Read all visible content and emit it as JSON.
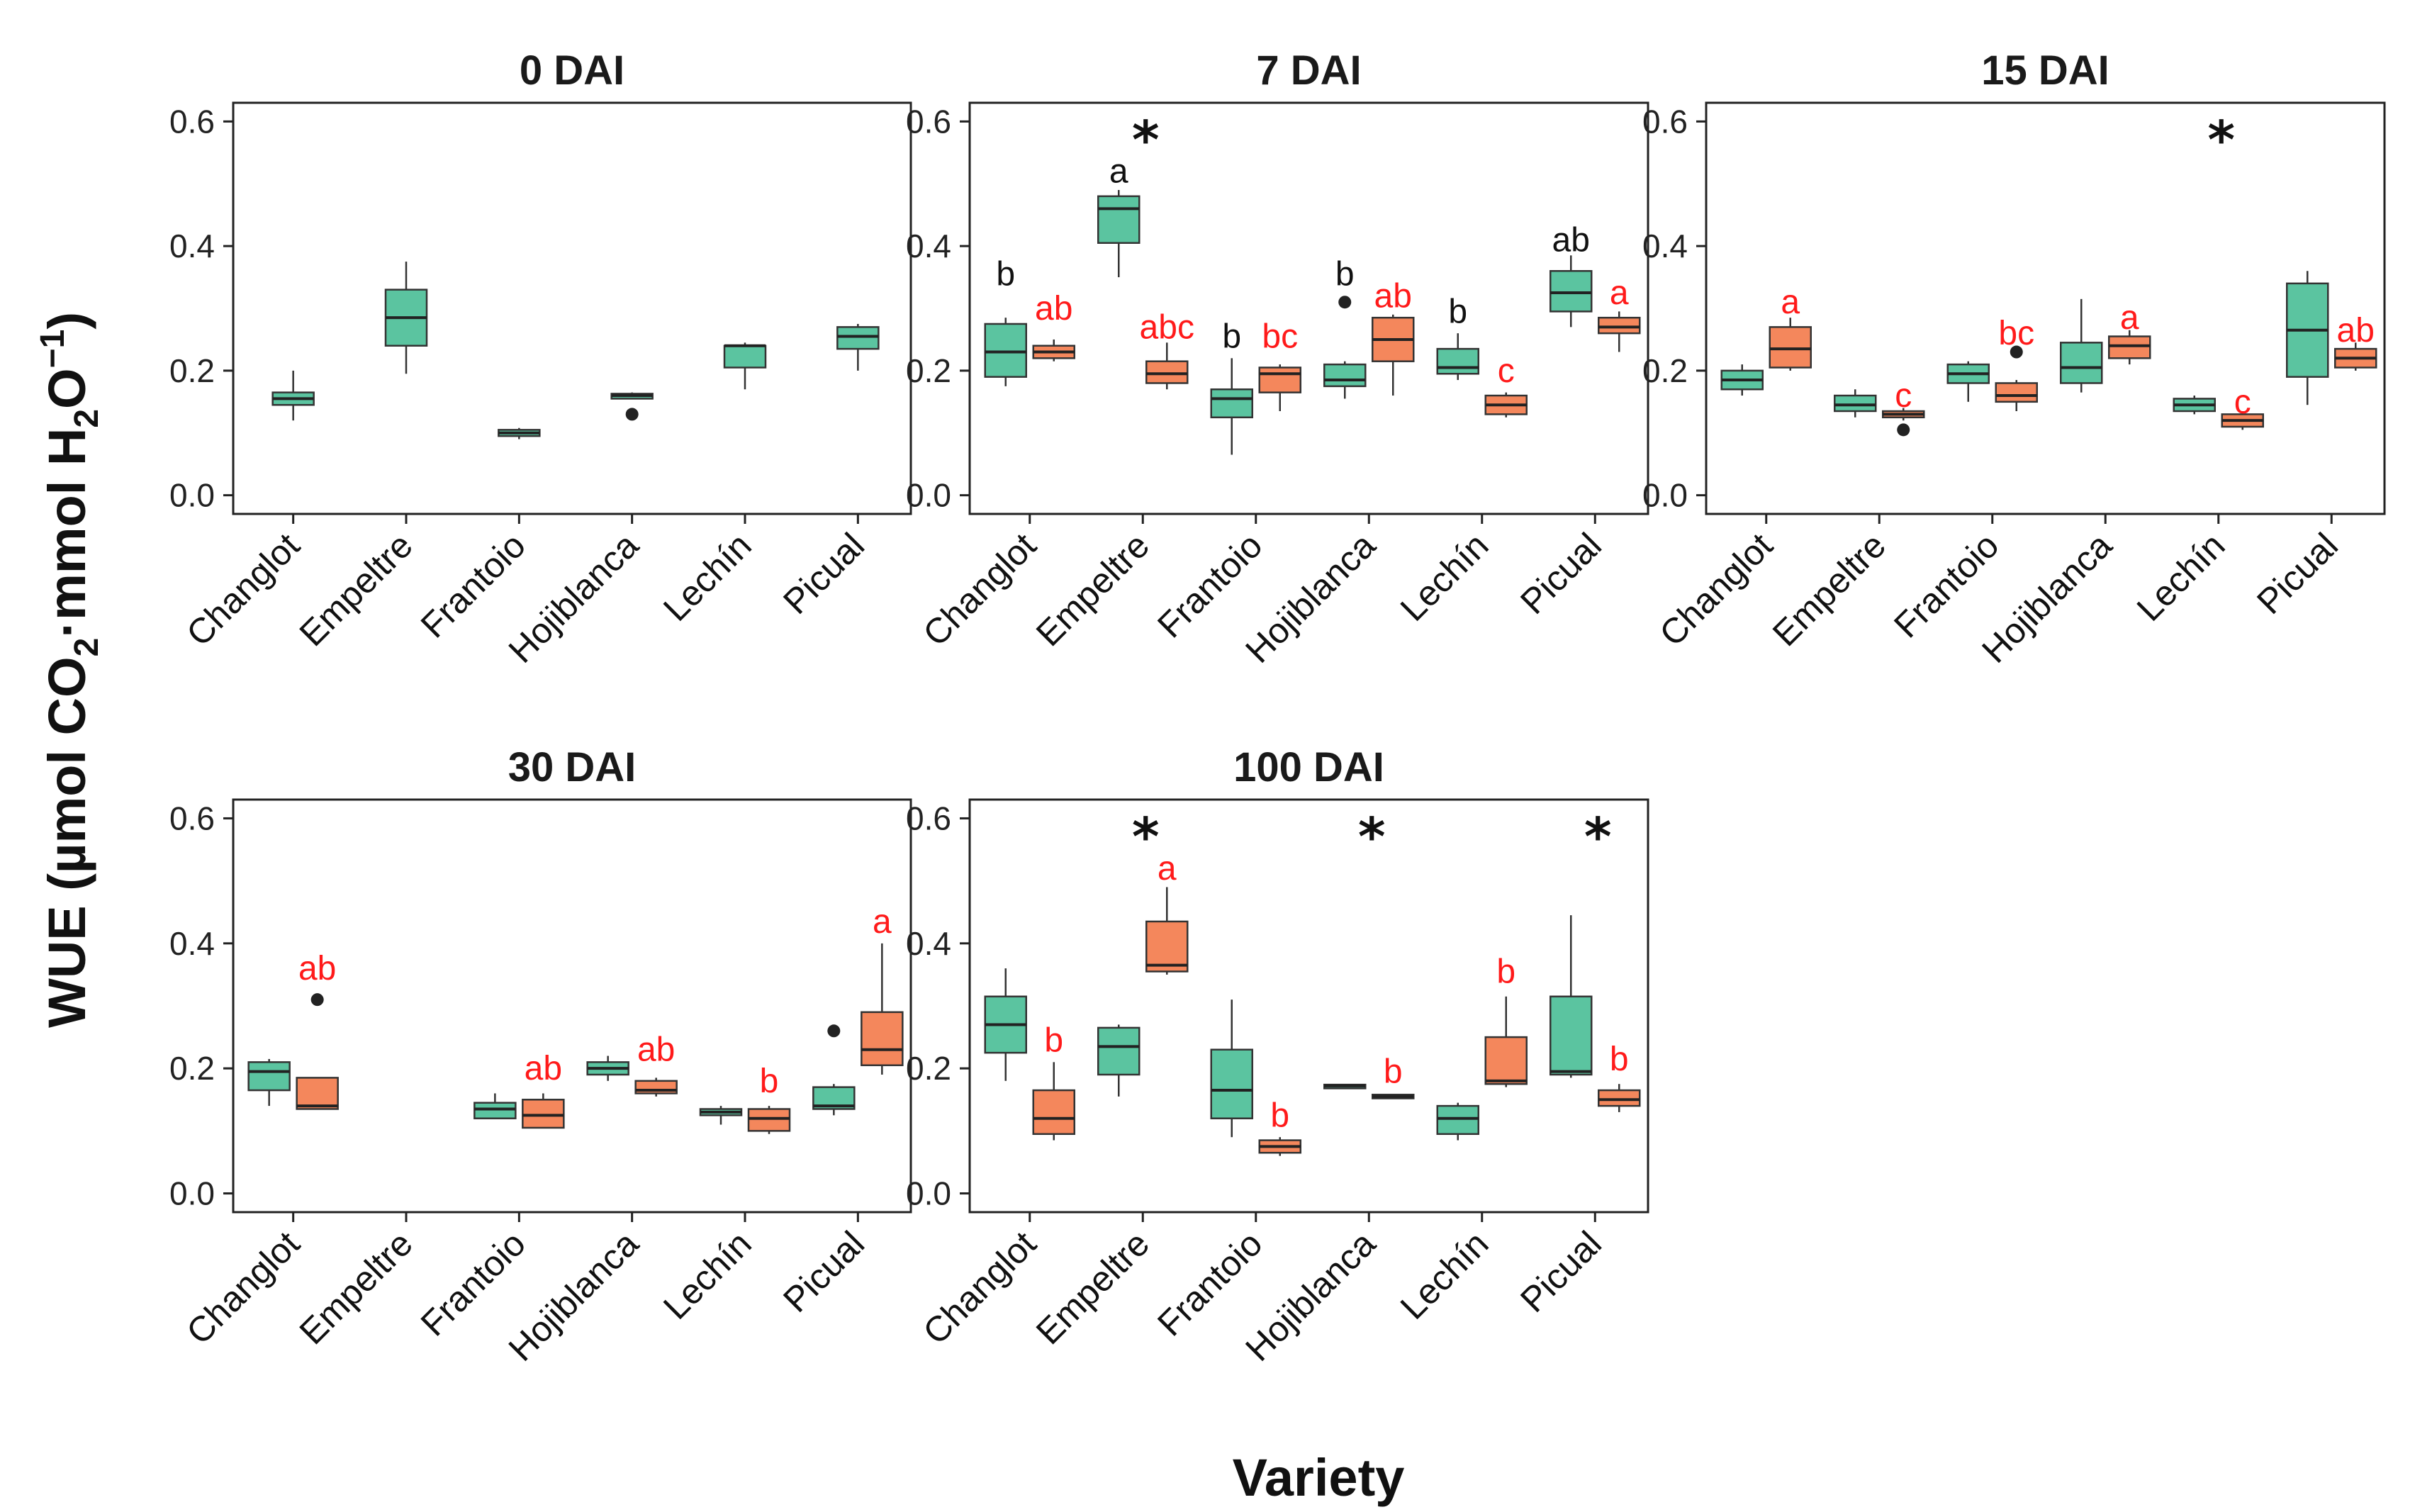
{
  "colors": {
    "control": "#5BC4A0",
    "treated": "#F4875C",
    "control_label": "#111111",
    "treated_label": "#FF1A1A",
    "frame": "#222222"
  },
  "figure": {
    "ylabel_main": "WUE (µmol CO",
    "ylabel_sub2": "2",
    "ylabel_mid": "·mmol H",
    "ylabel_sub2b": "2",
    "ylabel_o": "O",
    "ylabel_sup": "−1",
    "ylabel_end": ")",
    "xlabel": "Variety"
  },
  "chart_data": {
    "type": "box",
    "categories": [
      "Changlot",
      "Empeltre",
      "Frantoio",
      "Hojiblanca",
      "Lechín",
      "Picual"
    ],
    "yticks": [
      "0.0",
      "0.2",
      "0.4",
      "0.6"
    ],
    "ylim": [
      -0.03,
      0.63
    ],
    "series": [
      "control",
      "treated"
    ],
    "panels": [
      {
        "title": "0 DAI",
        "boxes": [
          {
            "cat": 0,
            "s": "control",
            "min": 0.12,
            "q1": 0.145,
            "med": 0.155,
            "q3": 0.165,
            "max": 0.2,
            "outliers": []
          },
          {
            "cat": 1,
            "s": "control",
            "min": 0.195,
            "q1": 0.24,
            "med": 0.285,
            "q3": 0.33,
            "max": 0.375,
            "outliers": []
          },
          {
            "cat": 2,
            "s": "control",
            "min": 0.09,
            "q1": 0.095,
            "med": 0.1,
            "q3": 0.105,
            "max": 0.108,
            "outliers": []
          },
          {
            "cat": 3,
            "s": "control",
            "min": 0.155,
            "q1": 0.155,
            "med": 0.16,
            "q3": 0.163,
            "max": 0.165,
            "outliers": [
              0.13
            ]
          },
          {
            "cat": 4,
            "s": "control",
            "min": 0.17,
            "q1": 0.205,
            "med": 0.24,
            "q3": 0.24,
            "max": 0.245,
            "outliers": []
          },
          {
            "cat": 5,
            "s": "control",
            "min": 0.2,
            "q1": 0.235,
            "med": 0.255,
            "q3": 0.27,
            "max": 0.275,
            "outliers": []
          }
        ],
        "labels": [],
        "stars": []
      },
      {
        "title": "7 DAI",
        "boxes": [
          {
            "cat": 0,
            "s": "control",
            "min": 0.175,
            "q1": 0.19,
            "med": 0.23,
            "q3": 0.275,
            "max": 0.285,
            "outliers": []
          },
          {
            "cat": 0,
            "s": "treated",
            "min": 0.215,
            "q1": 0.22,
            "med": 0.23,
            "q3": 0.24,
            "max": 0.25,
            "outliers": []
          },
          {
            "cat": 1,
            "s": "control",
            "min": 0.35,
            "q1": 0.405,
            "med": 0.46,
            "q3": 0.48,
            "max": 0.49,
            "outliers": []
          },
          {
            "cat": 1,
            "s": "treated",
            "min": 0.17,
            "q1": 0.18,
            "med": 0.195,
            "q3": 0.215,
            "max": 0.245,
            "outliers": []
          },
          {
            "cat": 2,
            "s": "control",
            "min": 0.065,
            "q1": 0.125,
            "med": 0.155,
            "q3": 0.17,
            "max": 0.22,
            "outliers": []
          },
          {
            "cat": 2,
            "s": "treated",
            "min": 0.135,
            "q1": 0.165,
            "med": 0.195,
            "q3": 0.205,
            "max": 0.21,
            "outliers": []
          },
          {
            "cat": 3,
            "s": "control",
            "min": 0.155,
            "q1": 0.175,
            "med": 0.185,
            "q3": 0.21,
            "max": 0.215,
            "outliers": [
              0.31
            ]
          },
          {
            "cat": 3,
            "s": "treated",
            "min": 0.16,
            "q1": 0.215,
            "med": 0.25,
            "q3": 0.285,
            "max": 0.29,
            "outliers": []
          },
          {
            "cat": 4,
            "s": "control",
            "min": 0.185,
            "q1": 0.195,
            "med": 0.205,
            "q3": 0.235,
            "max": 0.26,
            "outliers": []
          },
          {
            "cat": 4,
            "s": "treated",
            "min": 0.125,
            "q1": 0.13,
            "med": 0.145,
            "q3": 0.16,
            "max": 0.165,
            "outliers": []
          },
          {
            "cat": 5,
            "s": "control",
            "min": 0.27,
            "q1": 0.295,
            "med": 0.325,
            "q3": 0.36,
            "max": 0.385,
            "outliers": []
          },
          {
            "cat": 5,
            "s": "treated",
            "min": 0.23,
            "q1": 0.26,
            "med": 0.27,
            "q3": 0.285,
            "max": 0.295,
            "outliers": []
          }
        ],
        "labels": [
          {
            "cat": 0,
            "s": "control",
            "text": "b",
            "y": 0.355
          },
          {
            "cat": 0,
            "s": "treated",
            "text": "ab",
            "y": 0.3
          },
          {
            "cat": 1,
            "s": "control",
            "text": "a",
            "y": 0.52
          },
          {
            "cat": 1,
            "s": "treated",
            "text": "abc",
            "y": 0.27
          },
          {
            "cat": 2,
            "s": "control",
            "text": "b",
            "y": 0.255
          },
          {
            "cat": 2,
            "s": "treated",
            "text": "bc",
            "y": 0.255
          },
          {
            "cat": 3,
            "s": "control",
            "text": "b",
            "y": 0.355
          },
          {
            "cat": 3,
            "s": "treated",
            "text": "ab",
            "y": 0.32
          },
          {
            "cat": 4,
            "s": "control",
            "text": "b",
            "y": 0.295
          },
          {
            "cat": 4,
            "s": "treated",
            "text": "c",
            "y": 0.2
          },
          {
            "cat": 5,
            "s": "control",
            "text": "ab",
            "y": 0.41
          },
          {
            "cat": 5,
            "s": "treated",
            "text": "a",
            "y": 0.325
          }
        ],
        "stars": [
          1
        ]
      },
      {
        "title": "15 DAI",
        "boxes": [
          {
            "cat": 0,
            "s": "control",
            "min": 0.16,
            "q1": 0.17,
            "med": 0.185,
            "q3": 0.2,
            "max": 0.21,
            "outliers": []
          },
          {
            "cat": 0,
            "s": "treated",
            "min": 0.2,
            "q1": 0.205,
            "med": 0.235,
            "q3": 0.27,
            "max": 0.285,
            "outliers": []
          },
          {
            "cat": 1,
            "s": "control",
            "min": 0.125,
            "q1": 0.135,
            "med": 0.145,
            "q3": 0.16,
            "max": 0.17,
            "outliers": []
          },
          {
            "cat": 1,
            "s": "treated",
            "min": 0.12,
            "q1": 0.125,
            "med": 0.13,
            "q3": 0.135,
            "max": 0.14,
            "outliers": [
              0.105
            ]
          },
          {
            "cat": 2,
            "s": "control",
            "min": 0.15,
            "q1": 0.18,
            "med": 0.195,
            "q3": 0.21,
            "max": 0.215,
            "outliers": []
          },
          {
            "cat": 2,
            "s": "treated",
            "min": 0.135,
            "q1": 0.15,
            "med": 0.16,
            "q3": 0.18,
            "max": 0.185,
            "outliers": [
              0.23
            ]
          },
          {
            "cat": 3,
            "s": "control",
            "min": 0.165,
            "q1": 0.18,
            "med": 0.205,
            "q3": 0.245,
            "max": 0.315,
            "outliers": []
          },
          {
            "cat": 3,
            "s": "treated",
            "min": 0.21,
            "q1": 0.22,
            "med": 0.24,
            "q3": 0.255,
            "max": 0.265,
            "outliers": []
          },
          {
            "cat": 4,
            "s": "control",
            "min": 0.13,
            "q1": 0.135,
            "med": 0.145,
            "q3": 0.155,
            "max": 0.16,
            "outliers": []
          },
          {
            "cat": 4,
            "s": "treated",
            "min": 0.105,
            "q1": 0.11,
            "med": 0.12,
            "q3": 0.13,
            "max": 0.135,
            "outliers": []
          },
          {
            "cat": 5,
            "s": "control",
            "min": 0.145,
            "q1": 0.19,
            "med": 0.265,
            "q3": 0.34,
            "max": 0.36,
            "outliers": []
          },
          {
            "cat": 5,
            "s": "treated",
            "min": 0.2,
            "q1": 0.205,
            "med": 0.22,
            "q3": 0.235,
            "max": 0.245,
            "outliers": []
          }
        ],
        "labels": [
          {
            "cat": 0,
            "s": "treated",
            "text": "a",
            "y": 0.31
          },
          {
            "cat": 1,
            "s": "treated",
            "text": "c",
            "y": 0.16
          },
          {
            "cat": 2,
            "s": "treated",
            "text": "bc",
            "y": 0.26
          },
          {
            "cat": 3,
            "s": "treated",
            "text": "a",
            "y": 0.285
          },
          {
            "cat": 4,
            "s": "treated",
            "text": "c",
            "y": 0.15
          },
          {
            "cat": 5,
            "s": "treated",
            "text": "ab",
            "y": 0.265
          }
        ],
        "stars": [
          4
        ]
      },
      {
        "title": "30 DAI",
        "boxes": [
          {
            "cat": 0,
            "s": "control",
            "min": 0.14,
            "q1": 0.165,
            "med": 0.195,
            "q3": 0.21,
            "max": 0.215,
            "outliers": []
          },
          {
            "cat": 0,
            "s": "treated",
            "min": 0.135,
            "q1": 0.135,
            "med": 0.14,
            "q3": 0.185,
            "max": 0.185,
            "outliers": [
              0.31
            ]
          },
          {
            "cat": 2,
            "s": "control",
            "min": 0.12,
            "q1": 0.12,
            "med": 0.135,
            "q3": 0.145,
            "max": 0.16,
            "outliers": []
          },
          {
            "cat": 2,
            "s": "treated",
            "min": 0.105,
            "q1": 0.105,
            "med": 0.125,
            "q3": 0.15,
            "max": 0.16,
            "outliers": []
          },
          {
            "cat": 3,
            "s": "control",
            "min": 0.18,
            "q1": 0.19,
            "med": 0.2,
            "q3": 0.21,
            "max": 0.22,
            "outliers": []
          },
          {
            "cat": 3,
            "s": "treated",
            "min": 0.155,
            "q1": 0.16,
            "med": 0.165,
            "q3": 0.18,
            "max": 0.185,
            "outliers": []
          },
          {
            "cat": 4,
            "s": "control",
            "min": 0.11,
            "q1": 0.125,
            "med": 0.13,
            "q3": 0.135,
            "max": 0.14,
            "outliers": []
          },
          {
            "cat": 4,
            "s": "treated",
            "min": 0.095,
            "q1": 0.1,
            "med": 0.12,
            "q3": 0.135,
            "max": 0.14,
            "outliers": []
          },
          {
            "cat": 5,
            "s": "control",
            "min": 0.125,
            "q1": 0.135,
            "med": 0.14,
            "q3": 0.17,
            "max": 0.175,
            "outliers": [
              0.26
            ]
          },
          {
            "cat": 5,
            "s": "treated",
            "min": 0.19,
            "q1": 0.205,
            "med": 0.23,
            "q3": 0.29,
            "max": 0.4,
            "outliers": []
          }
        ],
        "labels": [
          {
            "cat": 0,
            "s": "treated",
            "text": "ab",
            "y": 0.36
          },
          {
            "cat": 2,
            "s": "treated",
            "text": "ab",
            "y": 0.2
          },
          {
            "cat": 3,
            "s": "treated",
            "text": "ab",
            "y": 0.23
          },
          {
            "cat": 4,
            "s": "treated",
            "text": "b",
            "y": 0.18
          },
          {
            "cat": 5,
            "s": "treated",
            "text": "a",
            "y": 0.435
          }
        ],
        "stars": []
      },
      {
        "title": "100 DAI",
        "boxes": [
          {
            "cat": 0,
            "s": "control",
            "min": 0.18,
            "q1": 0.225,
            "med": 0.27,
            "q3": 0.315,
            "max": 0.36,
            "outliers": []
          },
          {
            "cat": 0,
            "s": "treated",
            "min": 0.085,
            "q1": 0.095,
            "med": 0.12,
            "q3": 0.165,
            "max": 0.21,
            "outliers": []
          },
          {
            "cat": 1,
            "s": "control",
            "min": 0.155,
            "q1": 0.19,
            "med": 0.235,
            "q3": 0.265,
            "max": 0.27,
            "outliers": []
          },
          {
            "cat": 1,
            "s": "treated",
            "min": 0.35,
            "q1": 0.355,
            "med": 0.365,
            "q3": 0.435,
            "max": 0.49,
            "outliers": []
          },
          {
            "cat": 2,
            "s": "control",
            "min": 0.09,
            "q1": 0.12,
            "med": 0.165,
            "q3": 0.23,
            "max": 0.31,
            "outliers": []
          },
          {
            "cat": 2,
            "s": "treated",
            "min": 0.06,
            "q1": 0.065,
            "med": 0.075,
            "q3": 0.085,
            "max": 0.09,
            "outliers": []
          },
          {
            "cat": 3,
            "s": "control",
            "min": 0.168,
            "q1": 0.168,
            "med": 0.172,
            "q3": 0.174,
            "max": 0.174,
            "outliers": []
          },
          {
            "cat": 3,
            "s": "treated",
            "min": 0.152,
            "q1": 0.152,
            "med": 0.155,
            "q3": 0.158,
            "max": 0.158,
            "outliers": []
          },
          {
            "cat": 4,
            "s": "control",
            "min": 0.085,
            "q1": 0.095,
            "med": 0.12,
            "q3": 0.14,
            "max": 0.145,
            "outliers": []
          },
          {
            "cat": 4,
            "s": "treated",
            "min": 0.17,
            "q1": 0.175,
            "med": 0.18,
            "q3": 0.25,
            "max": 0.315,
            "outliers": []
          },
          {
            "cat": 5,
            "s": "control",
            "min": 0.185,
            "q1": 0.19,
            "med": 0.195,
            "q3": 0.315,
            "max": 0.445,
            "outliers": []
          },
          {
            "cat": 5,
            "s": "treated",
            "min": 0.13,
            "q1": 0.14,
            "med": 0.15,
            "q3": 0.165,
            "max": 0.175,
            "outliers": []
          }
        ],
        "labels": [
          {
            "cat": 0,
            "s": "treated",
            "text": "b",
            "y": 0.245
          },
          {
            "cat": 1,
            "s": "treated",
            "text": "a",
            "y": 0.52
          },
          {
            "cat": 2,
            "s": "treated",
            "text": "b",
            "y": 0.125
          },
          {
            "cat": 3,
            "s": "treated",
            "text": "b",
            "y": 0.195
          },
          {
            "cat": 4,
            "s": "treated",
            "text": "b",
            "y": 0.355
          },
          {
            "cat": 5,
            "s": "treated",
            "text": "b",
            "y": 0.215
          }
        ],
        "stars": [
          1,
          3,
          5
        ]
      }
    ]
  }
}
